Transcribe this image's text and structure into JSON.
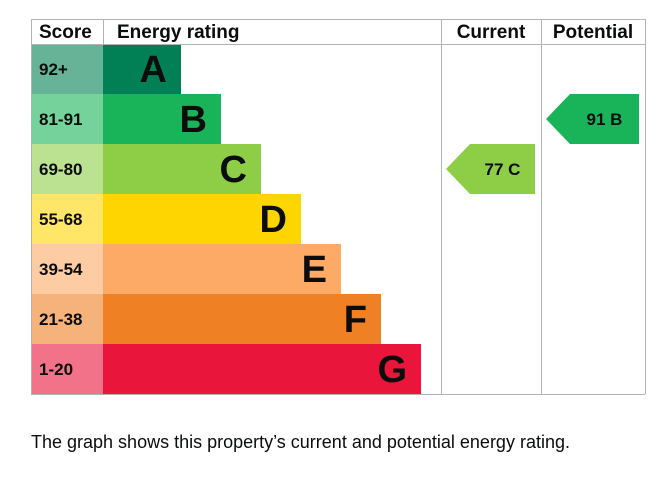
{
  "chart_data": {
    "type": "bar",
    "headers": {
      "score": "Score",
      "rating": "Energy rating",
      "current": "Current",
      "potential": "Potential"
    },
    "bands": [
      {
        "score": "92+",
        "letter": "A",
        "color": "#008054",
        "score_bg": "#66b398"
      },
      {
        "score": "81-91",
        "letter": "B",
        "color": "#19b459",
        "score_bg": "#75d29b"
      },
      {
        "score": "69-80",
        "letter": "C",
        "color": "#8dce46",
        "score_bg": "#bbe290"
      },
      {
        "score": "55-68",
        "letter": "D",
        "color": "#ffd500",
        "score_bg": "#ffe666"
      },
      {
        "score": "39-54",
        "letter": "E",
        "color": "#fcaa65",
        "score_bg": "#fdcca3"
      },
      {
        "score": "21-38",
        "letter": "F",
        "color": "#ef8023",
        "score_bg": "#f5b37b"
      },
      {
        "score": "1-20",
        "letter": "G",
        "color": "#e9153b",
        "score_bg": "#f27389"
      }
    ],
    "current": {
      "value": 77,
      "band": "C",
      "label": "77 C"
    },
    "potential": {
      "value": 91,
      "band": "B",
      "label": "91 B"
    }
  },
  "caption": "The graph shows this property’s current and potential energy rating."
}
